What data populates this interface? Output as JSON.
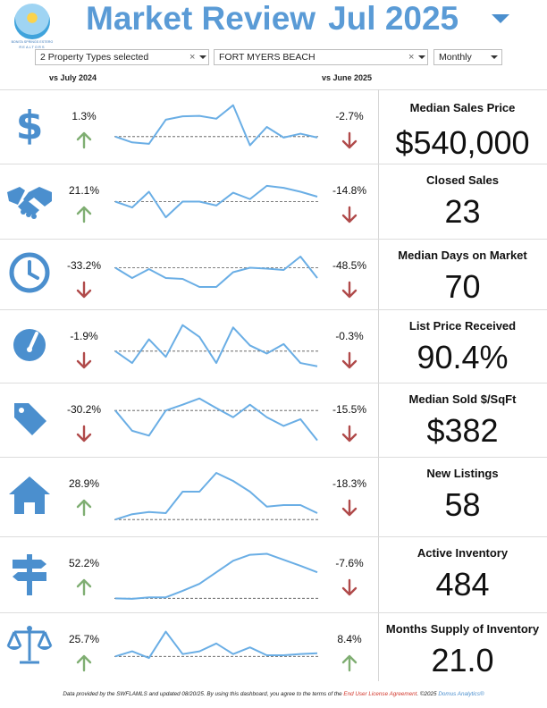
{
  "header": {
    "logo_line1": "BONITA SPRINGS ESTERO",
    "logo_line2": "REALTORS",
    "title_left": "Market Review",
    "title_right": "Jul 2025",
    "menu_icon": "caret-down-icon"
  },
  "filters": {
    "property_types": {
      "value": "2 Property Types selected",
      "clear_icon": "×"
    },
    "area": {
      "value": "FORT MYERS BEACH",
      "clear_icon": "×"
    },
    "period": {
      "value": "Monthly"
    }
  },
  "columns": {
    "yoy": "vs July 2024",
    "mom": "vs June 2025"
  },
  "colors": {
    "accent_blue": "#5a9bd6",
    "icon_blue": "#4b8fce",
    "line_blue": "#6aaee5",
    "up_green": "#7fae72",
    "down_red": "#b04a4a"
  },
  "metrics": [
    {
      "icon": "dollar-icon",
      "yoy": "1.3%",
      "yoy_dir": "up",
      "mom": "-2.7%",
      "mom_dir": "down",
      "title": "Median Sales Price",
      "value": "$540,000",
      "trend": [
        0.7,
        0.82,
        0.85,
        0.35,
        0.28,
        0.27,
        0.33,
        0.05,
        0.88,
        0.5,
        0.72,
        0.64,
        0.72
      ]
    },
    {
      "icon": "handshake-icon",
      "yoy": "21.1%",
      "yoy_dir": "up",
      "mom": "-14.8%",
      "mom_dir": "down",
      "title": "Closed Sales",
      "value": "23",
      "trend": [
        0.5,
        0.62,
        0.3,
        0.82,
        0.5,
        0.5,
        0.58,
        0.32,
        0.45,
        0.18,
        0.22,
        0.3,
        0.4
      ]
    },
    {
      "icon": "clock-icon",
      "yoy": "-33.2%",
      "yoy_dir": "down",
      "mom": "-48.5%",
      "mom_dir": "down",
      "title": "Median Days on Market",
      "value": "70",
      "trend": [
        0.35,
        0.58,
        0.38,
        0.58,
        0.6,
        0.78,
        0.78,
        0.45,
        0.35,
        0.37,
        0.4,
        0.1,
        0.58
      ]
    },
    {
      "icon": "gauge-icon",
      "yoy": "-1.9%",
      "yoy_dir": "down",
      "mom": "-0.3%",
      "mom_dir": "down",
      "title": "List Price Received",
      "value": "90.4%",
      "trend": [
        0.6,
        0.85,
        0.35,
        0.72,
        0.05,
        0.3,
        0.85,
        0.1,
        0.48,
        0.65,
        0.45,
        0.85,
        0.92
      ]
    },
    {
      "icon": "tag-icon",
      "yoy": "-30.2%",
      "yoy_dir": "down",
      "mom": "-15.5%",
      "mom_dir": "down",
      "title": "Median Sold $/SqFt",
      "value": "$382",
      "trend": [
        0.3,
        0.72,
        0.82,
        0.3,
        0.18,
        0.05,
        0.25,
        0.44,
        0.18,
        0.44,
        0.62,
        0.48,
        0.92
      ]
    },
    {
      "icon": "house-icon",
      "yoy": "28.9%",
      "yoy_dir": "up",
      "mom": "-18.3%",
      "mom_dir": "down",
      "title": "New Listings",
      "value": "58",
      "trend": [
        0.92,
        0.82,
        0.78,
        0.8,
        0.4,
        0.4,
        0.05,
        0.2,
        0.4,
        0.68,
        0.65,
        0.65,
        0.8
      ]
    },
    {
      "icon": "signpost-icon",
      "yoy": "52.2%",
      "yoy_dir": "up",
      "mom": "-7.6%",
      "mom_dir": "down",
      "title": "Active Inventory",
      "value": "484",
      "trend": [
        0.97,
        0.98,
        0.95,
        0.95,
        0.82,
        0.68,
        0.45,
        0.22,
        0.1,
        0.08,
        0.2,
        0.32,
        0.45
      ]
    },
    {
      "icon": "scale-icon",
      "yoy": "25.7%",
      "yoy_dir": "up",
      "mom": "8.4%",
      "mom_dir": "up",
      "title": "Months Supply of Inventory",
      "value": "21.0",
      "trend": [
        0.78,
        0.65,
        0.82,
        0.15,
        0.72,
        0.65,
        0.45,
        0.72,
        0.55,
        0.75,
        0.75,
        0.72,
        0.7
      ]
    }
  ],
  "footer": {
    "text1": "Data provided by the SWFLAMLS and updated 08/20/25.  By using this dashboard, you agree to the terms of the ",
    "link": "End User License Agreement",
    "text2": ".  ©2025 ",
    "brand": "Domus Analytics®"
  }
}
